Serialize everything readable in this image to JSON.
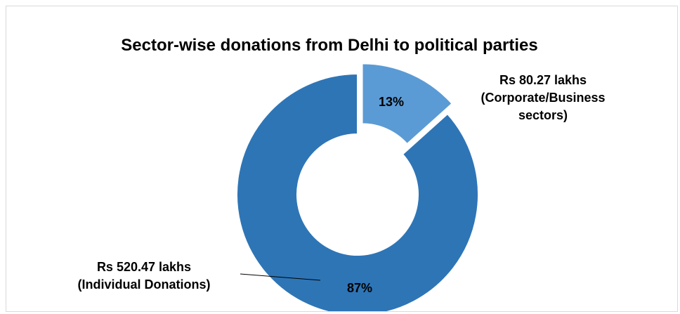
{
  "chart_data": {
    "type": "pie",
    "variant": "donut",
    "title": "Sector-wise donations from Delhi to political parties",
    "slices": [
      {
        "id": "corporate",
        "value": 80.27,
        "percent": 13,
        "percent_label": "13%",
        "label_lines": [
          "Rs  80.27 lakhs",
          "(Corporate/Business",
          "sectors)"
        ],
        "color": "#5b9bd5",
        "exploded": true
      },
      {
        "id": "individual",
        "value": 520.47,
        "percent": 87,
        "percent_label": "87%",
        "label_lines": [
          "Rs 520.47  lakhs",
          "(Individual Donations)"
        ],
        "color": "#2e75b6",
        "exploded": false
      }
    ],
    "unit": "lakhs"
  }
}
